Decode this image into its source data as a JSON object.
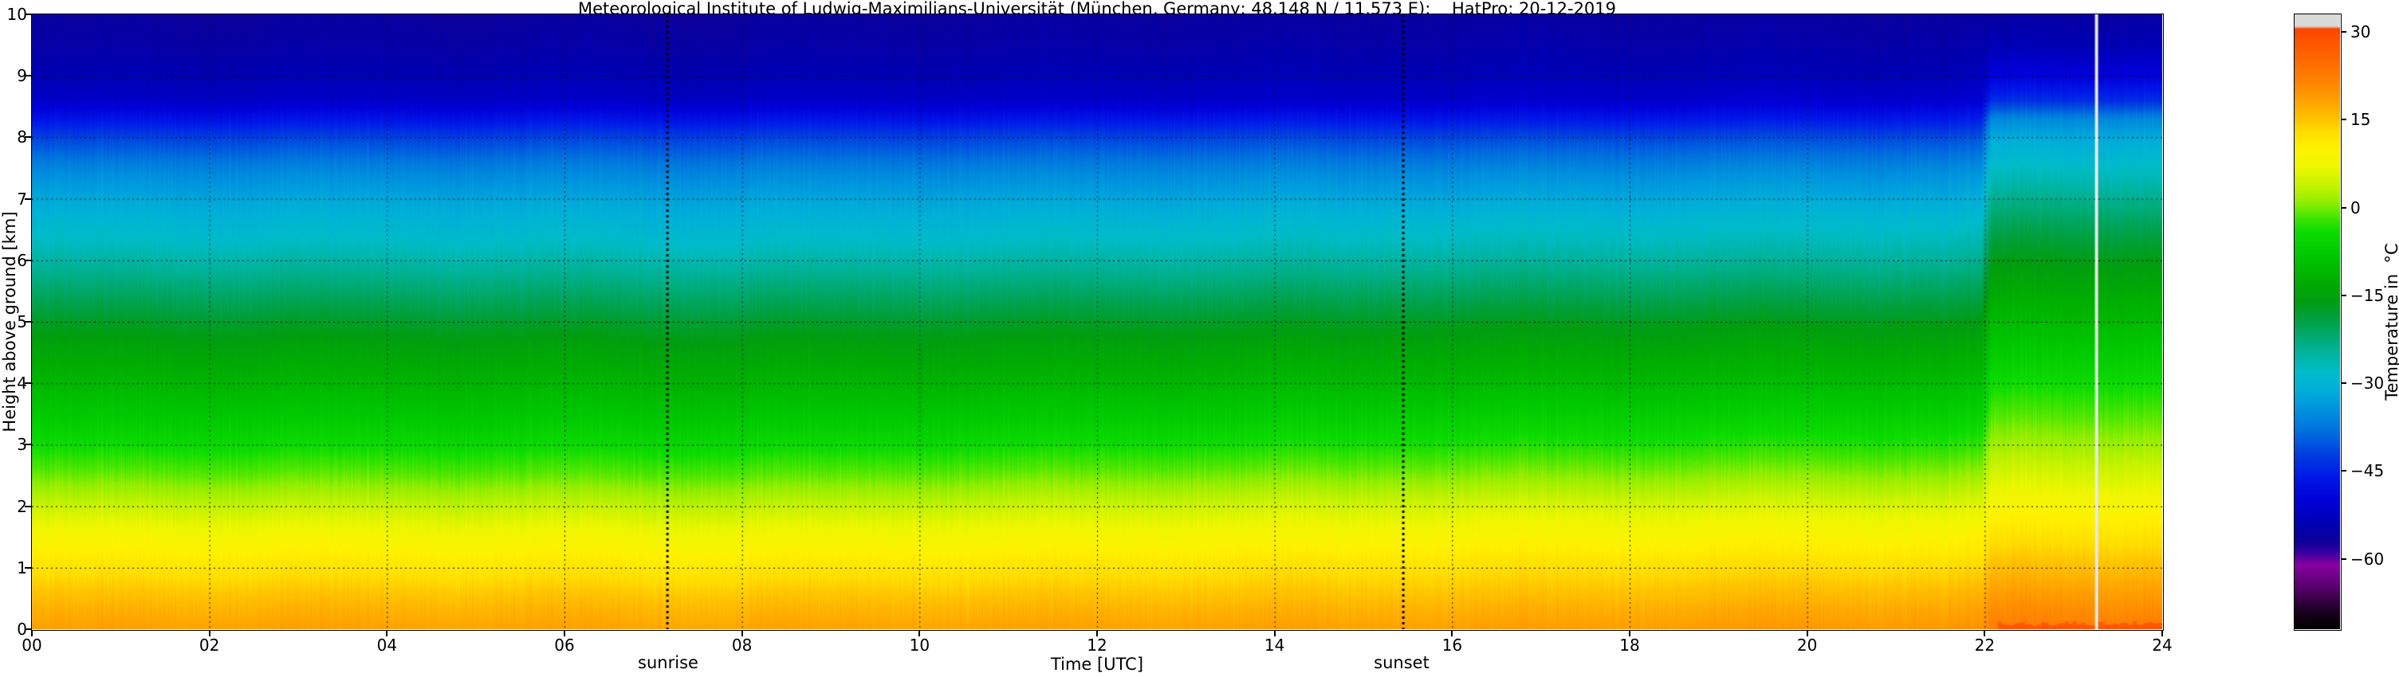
{
  "title": "Meteorological Institute of Ludwig-Maximilians-Universität (München, Germany; 48.148 N / 11.573 E):    HatPro: 20-12-2019",
  "annotations": {
    "sunrise_label": "sunrise",
    "sunset_label": "sunset"
  },
  "chart_data": {
    "type": "heatmap",
    "title": "Meteorological Institute of Ludwig-Maximilians-Universität (München, Germany; 48.148 N / 11.573 E):    HatPro: 20-12-2019",
    "xlabel": "Time [UTC]",
    "ylabel": "Height above ground [km]",
    "x_range_hours": [
      0,
      24
    ],
    "y_range_km": [
      0,
      10
    ],
    "x_ticks": [
      "00",
      "02",
      "04",
      "06",
      "08",
      "10",
      "12",
      "14",
      "16",
      "18",
      "20",
      "22",
      "24"
    ],
    "y_ticks": [
      "0",
      "1",
      "2",
      "3",
      "4",
      "5",
      "6",
      "7",
      "8",
      "9",
      "10"
    ],
    "grid": {
      "x_interval_hours": 2,
      "y_interval_km": 1,
      "style": "dotted",
      "on": true
    },
    "legend_position": "right-colorbar",
    "colorbar": {
      "label": "Temperature in  °C",
      "tick_values": [
        30,
        15,
        0,
        -15,
        -30,
        -45,
        -60
      ],
      "tick_labels": [
        "30",
        "15",
        "0",
        "−15",
        "−30",
        "−45",
        "−60"
      ],
      "range": [
        -72,
        33
      ],
      "colormap_stops": [
        [
          -72,
          "#000000"
        ],
        [
          -69,
          "#1a0020"
        ],
        [
          -65,
          "#55006a"
        ],
        [
          -61,
          "#8800a0"
        ],
        [
          -59,
          "#3b00a0"
        ],
        [
          -57,
          "#0c0099"
        ],
        [
          -54,
          "#0000b3"
        ],
        [
          -50,
          "#0000d9"
        ],
        [
          -46,
          "#0018e8"
        ],
        [
          -42,
          "#0040e0"
        ],
        [
          -38,
          "#0072dd"
        ],
        [
          -34,
          "#0098dd"
        ],
        [
          -31,
          "#00b0d8"
        ],
        [
          -28,
          "#00bcc8"
        ],
        [
          -25,
          "#00b4a0"
        ],
        [
          -22,
          "#00aa70"
        ],
        [
          -19,
          "#00a040"
        ],
        [
          -16,
          "#009d10"
        ],
        [
          -12,
          "#00b000"
        ],
        [
          -8,
          "#00c800"
        ],
        [
          -4,
          "#0ddd00"
        ],
        [
          -1,
          "#55e800"
        ],
        [
          1,
          "#94ee00"
        ],
        [
          4,
          "#c8f300"
        ],
        [
          7,
          "#eef700"
        ],
        [
          10,
          "#fff200"
        ],
        [
          13,
          "#ffdd00"
        ],
        [
          15,
          "#ffc400"
        ],
        [
          18,
          "#ffa500"
        ],
        [
          21,
          "#ff8800"
        ],
        [
          25,
          "#ff6a00"
        ],
        [
          29,
          "#ff5000"
        ],
        [
          30.5,
          "#fa4400"
        ],
        [
          31,
          "#d9d9d9"
        ],
        [
          33,
          "#d9d9d9"
        ]
      ]
    },
    "events": {
      "sunrise_time_utc": 7.16,
      "sunset_time_utc": 15.45,
      "marker_time_utc": 23.26
    },
    "field": {
      "description": "Temperature (°C) vs height above ground (km) and time (UTC); profiles linearly interpolated in time, abrupt warm shift ~22:00 UTC",
      "heights_km": [
        0,
        0.3,
        0.6,
        1,
        1.5,
        2,
        2.5,
        3,
        3.5,
        4,
        4.5,
        5,
        5.5,
        6,
        6.5,
        7,
        7.5,
        8,
        8.3,
        8.6,
        9,
        9.5,
        10
      ],
      "profile_times_utc": [
        0,
        8,
        16,
        21.95,
        22.08,
        24
      ],
      "profiles_degC": [
        [
          18.5,
          17.0,
          15.0,
          12.0,
          8.5,
          4.0,
          -0.5,
          -4.5,
          -8.0,
          -11.0,
          -14.0,
          -17.5,
          -21.5,
          -25.5,
          -29.0,
          -32.0,
          -36.0,
          -42.0,
          -47.0,
          -52.0,
          -54.0,
          -55.5,
          -56.5
        ],
        [
          18.0,
          16.5,
          14.5,
          11.5,
          8.0,
          3.5,
          -1.0,
          -5.0,
          -8.5,
          -11.5,
          -14.5,
          -18.0,
          -22.0,
          -26.0,
          -29.5,
          -32.5,
          -36.5,
          -42.0,
          -47.0,
          -52.0,
          -54.0,
          -55.5,
          -56.5
        ],
        [
          18.5,
          17.0,
          15.0,
          12.5,
          9.0,
          5.0,
          0.5,
          -3.5,
          -7.0,
          -10.5,
          -13.5,
          -17.0,
          -21.0,
          -25.0,
          -28.5,
          -32.0,
          -36.0,
          -41.5,
          -46.5,
          -51.5,
          -53.5,
          -55.0,
          -56.0
        ],
        [
          19.5,
          18.0,
          16.0,
          13.0,
          9.5,
          5.5,
          1.0,
          -3.0,
          -6.5,
          -10.0,
          -13.0,
          -16.5,
          -20.5,
          -24.5,
          -28.0,
          -31.5,
          -35.5,
          -41.0,
          -46.0,
          -51.0,
          -53.5,
          -55.0,
          -56.0
        ],
        [
          22.0,
          20.5,
          18.5,
          15.5,
          12.0,
          8.5,
          5.0,
          1.5,
          -1.5,
          -4.5,
          -7.5,
          -10.5,
          -13.5,
          -16.5,
          -20.0,
          -24.0,
          -28.0,
          -32.0,
          -36.0,
          -44.0,
          -50.0,
          -54.0,
          -56.0
        ],
        [
          23.0,
          21.0,
          19.0,
          16.0,
          12.5,
          9.0,
          5.5,
          2.0,
          -1.0,
          -4.0,
          -7.0,
          -10.0,
          -13.0,
          -16.0,
          -19.5,
          -23.5,
          -27.5,
          -31.5,
          -35.5,
          -43.5,
          -49.5,
          -53.5,
          -55.5
        ]
      ]
    }
  }
}
